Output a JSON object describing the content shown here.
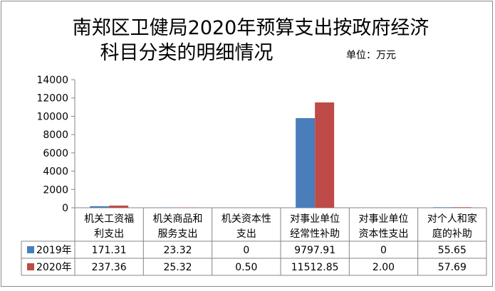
{
  "chart_data": {
    "type": "bar",
    "title_line1": "南郑区卫健局2020年预算支出按政府经济",
    "title_line2": "科目分类的明细情况",
    "unit_note": "单位：万元",
    "categories": [
      [
        "机关工资福",
        "利支出"
      ],
      [
        "机关商品和",
        "服务支出"
      ],
      [
        "机关资本性",
        "支出"
      ],
      [
        "对事业单位",
        "经常性补助"
      ],
      [
        "对事业单位",
        "资本性支出"
      ],
      [
        "对个人和家",
        "庭的补助"
      ]
    ],
    "series": [
      {
        "name": "2019年",
        "color": "#4a7ebb",
        "values": [
          171.31,
          23.32,
          0,
          9797.91,
          0,
          55.65
        ],
        "labels": [
          "171.31",
          "23.32",
          "0",
          "9797.91",
          "0",
          "55.65"
        ]
      },
      {
        "name": "2020年",
        "color": "#be4b48",
        "values": [
          237.36,
          25.32,
          0.5,
          11512.85,
          2.0,
          57.69
        ],
        "labels": [
          "237.36",
          "25.32",
          "0.50",
          "11512.85",
          "2.00",
          "57.69"
        ]
      }
    ],
    "y_ticks": [
      0,
      2000,
      4000,
      6000,
      8000,
      10000,
      12000,
      14000
    ],
    "ylim": [
      0,
      14000
    ],
    "grid": false,
    "legend": "data-table"
  }
}
